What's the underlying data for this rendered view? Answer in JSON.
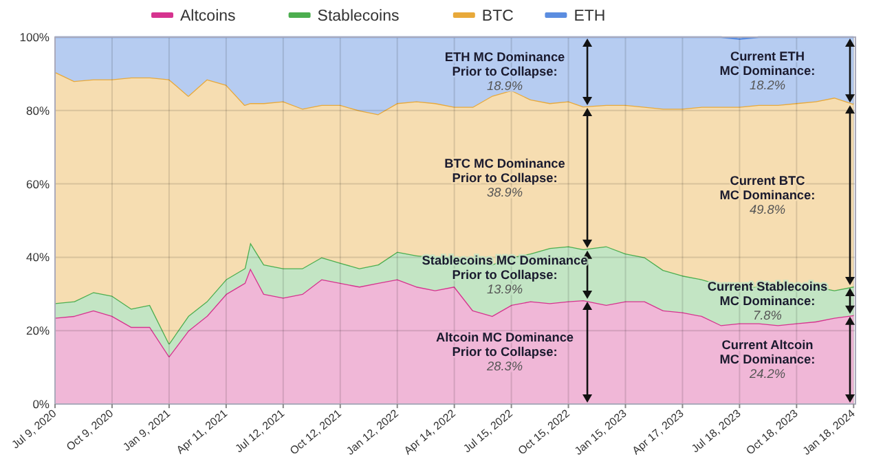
{
  "chart_data": {
    "type": "area",
    "stacked": true,
    "legend": "top",
    "grid": true,
    "x": [
      "2020-07-09",
      "2020-08-09",
      "2020-09-09",
      "2020-10-09",
      "2020-11-09",
      "2020-12-09",
      "2021-01-09",
      "2021-02-09",
      "2021-03-11",
      "2021-04-11",
      "2021-05-11",
      "2021-05-20",
      "2021-06-11",
      "2021-07-12",
      "2021-08-12",
      "2021-09-12",
      "2021-10-12",
      "2021-11-12",
      "2021-12-12",
      "2022-01-12",
      "2022-02-12",
      "2022-03-14",
      "2022-04-14",
      "2022-05-14",
      "2022-06-14",
      "2022-07-15",
      "2022-08-15",
      "2022-09-15",
      "2022-10-15",
      "2022-11-08",
      "2022-12-15",
      "2023-01-15",
      "2023-02-15",
      "2023-03-17",
      "2023-04-17",
      "2023-05-18",
      "2023-06-18",
      "2023-07-18",
      "2023-08-18",
      "2023-09-18",
      "2023-10-18",
      "2023-11-18",
      "2023-12-18",
      "2024-01-18"
    ],
    "series": [
      {
        "name": "Altcoins",
        "color": "#d6338f",
        "values": [
          23.5,
          24,
          25.5,
          24,
          21,
          21,
          13,
          20,
          24,
          30,
          33,
          37,
          30,
          29,
          30,
          34,
          33,
          32,
          33,
          34,
          32,
          31,
          32,
          25.5,
          24,
          27,
          28,
          27.5,
          28,
          28.3,
          27,
          28,
          28,
          25.5,
          25,
          24,
          21.5,
          22,
          22,
          21.5,
          22,
          22.5,
          23.5,
          24.2
        ]
      },
      {
        "name": "Stablecoins",
        "color": "#4cae4f",
        "values": [
          4,
          4,
          5,
          5.5,
          5,
          6,
          3.5,
          4,
          4,
          4,
          4,
          7,
          8,
          8,
          7,
          6,
          5.5,
          5,
          5,
          7.5,
          8.5,
          9,
          8,
          13.5,
          14,
          13,
          13,
          15,
          15,
          13.9,
          16,
          13,
          12,
          11,
          10,
          10,
          11,
          9.5,
          10,
          9.5,
          9,
          9.5,
          7.5,
          7.8
        ]
      },
      {
        "name": "BTC",
        "color": "#e8a93a",
        "values": [
          63,
          60,
          58,
          59,
          63,
          62,
          72,
          60,
          60.5,
          53,
          44.5,
          38,
          44,
          45.5,
          43.5,
          41.5,
          43,
          43,
          41,
          40.5,
          42,
          42,
          41,
          42,
          46,
          45.5,
          42,
          39.5,
          39.5,
          38.9,
          38.5,
          40.5,
          41,
          44,
          45.5,
          47,
          48.5,
          49.5,
          49.5,
          50.5,
          51,
          50.5,
          52.5,
          49.8
        ]
      },
      {
        "name": "ETH",
        "color": "#5b8de0",
        "values": [
          9.5,
          12,
          11.5,
          11.5,
          11,
          11,
          11.5,
          16,
          11.5,
          13,
          18.5,
          18,
          18,
          17.5,
          19.5,
          18.5,
          18.5,
          20,
          21,
          18,
          17.5,
          18,
          19,
          19,
          16,
          14.5,
          17,
          18,
          17.5,
          18.9,
          18.5,
          18.5,
          19,
          19.5,
          19.5,
          19,
          19,
          18.5,
          18.5,
          18.5,
          18,
          17.5,
          16.5,
          18.2
        ]
      }
    ],
    "xlim": [
      "2020-07-09",
      "2024-01-21"
    ],
    "xticks": [
      {
        "value": "2020-07-09",
        "label": "Jul 9, 2020"
      },
      {
        "value": "2020-10-09",
        "label": "Oct 9, 2020"
      },
      {
        "value": "2021-01-09",
        "label": "Jan 9, 2021"
      },
      {
        "value": "2021-04-11",
        "label": "Apr 11, 2021"
      },
      {
        "value": "2021-07-12",
        "label": "Jul 12, 2021"
      },
      {
        "value": "2021-10-12",
        "label": "Oct 12, 2021"
      },
      {
        "value": "2022-01-12",
        "label": "Jan 12, 2022"
      },
      {
        "value": "2022-04-14",
        "label": "Apr 14, 2022"
      },
      {
        "value": "2022-07-15",
        "label": "Jul 15, 2022"
      },
      {
        "value": "2022-10-15",
        "label": "Oct 15, 2022"
      },
      {
        "value": "2023-01-15",
        "label": "Jan 15, 2023"
      },
      {
        "value": "2023-04-17",
        "label": "Apr 17, 2023"
      },
      {
        "value": "2023-07-18",
        "label": "Jul 18, 2023"
      },
      {
        "value": "2023-10-18",
        "label": "Oct 18, 2023"
      },
      {
        "value": "2024-01-18",
        "label": "Jan 18, 2024"
      }
    ],
    "ylim": [
      0,
      100
    ],
    "yticks": [
      {
        "value": 0,
        "label": "0%"
      },
      {
        "value": 20,
        "label": "20%"
      },
      {
        "value": 40,
        "label": "40%"
      },
      {
        "value": 60,
        "label": "60%"
      },
      {
        "value": 80,
        "label": "80%"
      },
      {
        "value": 100,
        "label": "100%"
      }
    ],
    "annotations": [
      "ETH MC Dominance\nPrior to Collapse:\n18.9%",
      "BTC MC Dominance\nPrior to Collapse:\n38.9%",
      "Stablecoins MC Dominance\nPrior to Collapse:\n13.9%",
      "Altcoin MC Dominance\nPrior to Collapse:\n28.3%",
      "Current ETH\nMC Dominance:\n18.2%",
      "Current BTC\nMC Dominance:\n49.8%",
      "Current Stablecoins\nMC Dominance:\n7.8%",
      "Current Altcoin\nMC Dominance:\n24.2%"
    ]
  }
}
